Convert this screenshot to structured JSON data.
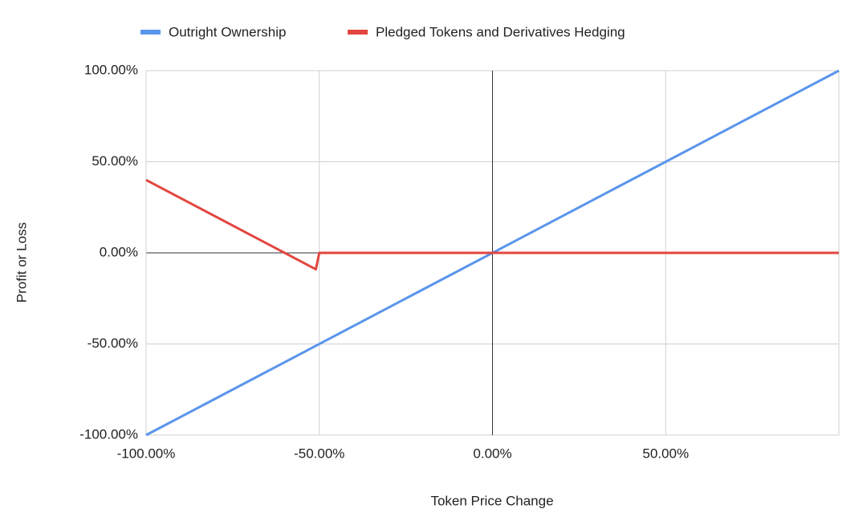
{
  "chart_data": {
    "type": "line",
    "xlabel": "Token Price Change",
    "ylabel": "Profit or Loss",
    "series": [
      {
        "name": "Outright Ownership",
        "color": "#5a95ec",
        "x": [
          -100,
          100
        ],
        "values": [
          -100,
          100
        ]
      },
      {
        "name": "Pledged Tokens and Derivatives Hedging",
        "color": "#e2463f",
        "x": [
          -100,
          -51,
          -50,
          100
        ],
        "values": [
          40,
          -9,
          0,
          0
        ]
      }
    ],
    "xlim": [
      -100,
      100
    ],
    "xticks": [
      {
        "value": -100,
        "label": "-100.00%"
      },
      {
        "value": -50,
        "label": "-50.00%"
      },
      {
        "value": 0,
        "label": "0.00%"
      },
      {
        "value": 50,
        "label": "50.00%"
      }
    ],
    "ylim": [
      -100,
      100
    ],
    "yticks": [
      {
        "value": -100,
        "label": "-100.00%"
      },
      {
        "value": -50,
        "label": "-50.00%"
      },
      {
        "value": 0,
        "label": "0.00%"
      },
      {
        "value": 50,
        "label": "50.00%"
      },
      {
        "value": 100,
        "label": "100.00%"
      }
    ],
    "grid": true,
    "legend": "top"
  }
}
